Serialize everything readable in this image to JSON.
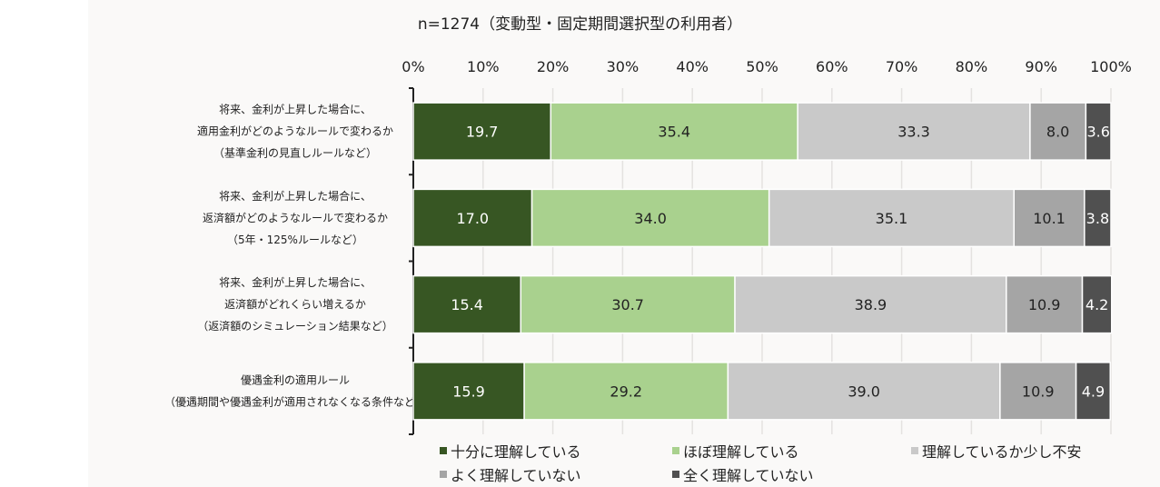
{
  "chart_data": {
    "type": "bar",
    "orientation": "horizontal",
    "stacked": true,
    "title": "n=1274（変動型・固定期間選択型の利用者）",
    "xlim": [
      0,
      100
    ],
    "x_ticks": [
      "0%",
      "10%",
      "20%",
      "30%",
      "40%",
      "50%",
      "60%",
      "70%",
      "80%",
      "90%",
      "100%"
    ],
    "grid": true,
    "legend_position": "bottom",
    "categories": [
      [
        "将来、金利が上昇した場合に、",
        "適用金利がどのようなルールで変わるか",
        "（基準金利の見直しルールなど）"
      ],
      [
        "将来、金利が上昇した場合に、",
        "返済額がどのようなルールで変わるか",
        "（5年・125%ルールなど）"
      ],
      [
        "将来、金利が上昇した場合に、",
        "返済額がどれくらい増えるか",
        "（返済額のシミュレーション結果など）"
      ],
      [
        "優遇金利の適用ルール",
        "（優遇期間や優遇金利が適用されなくなる条件など）"
      ]
    ],
    "series": [
      {
        "name": "十分に理解している",
        "color": "#375623",
        "label_color": "#ffffff",
        "values": [
          19.7,
          17.0,
          15.4,
          15.9
        ]
      },
      {
        "name": "ほぼ理解している",
        "color": "#a9d18e",
        "label_color": "#222222",
        "values": [
          35.4,
          34.0,
          30.7,
          29.2
        ]
      },
      {
        "name": "理解しているか少し不安",
        "color": "#c9c9c9",
        "label_color": "#222222",
        "values": [
          33.3,
          35.1,
          38.9,
          39.0
        ]
      },
      {
        "name": "よく理解していない",
        "color": "#a5a5a5",
        "label_color": "#222222",
        "values": [
          8.0,
          10.1,
          10.9,
          10.9
        ]
      },
      {
        "name": "全く理解していない",
        "color": "#505050",
        "label_color": "#ffffff",
        "values": [
          3.6,
          3.8,
          4.2,
          4.9
        ]
      }
    ]
  }
}
